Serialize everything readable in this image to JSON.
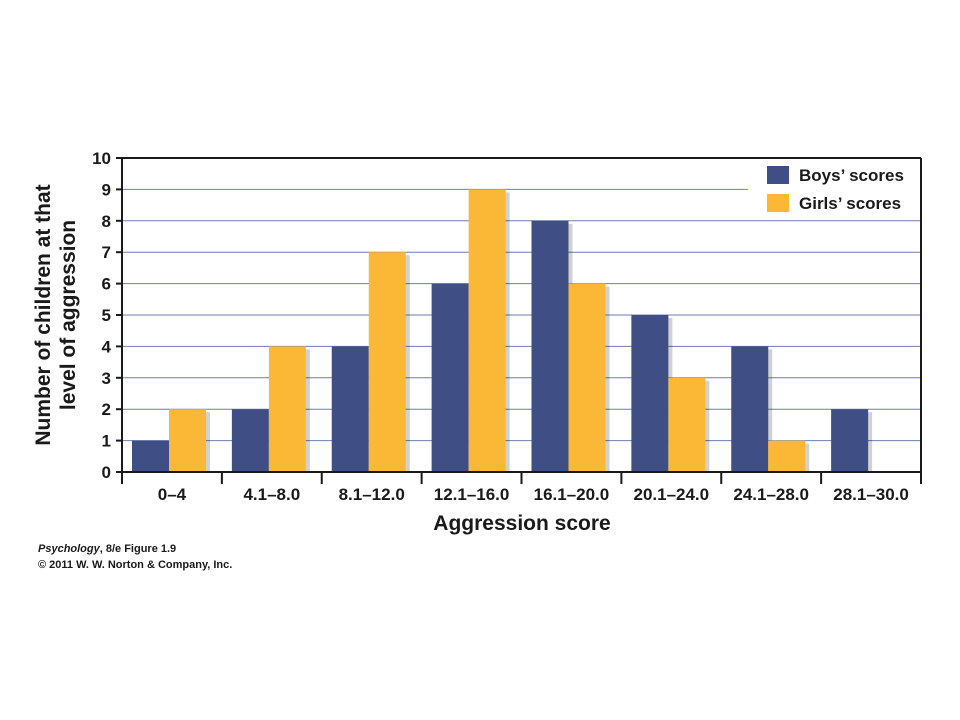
{
  "chart_data": {
    "type": "bar",
    "categories": [
      "0–4",
      "4.1–8.0",
      "8.1–12.0",
      "12.1–16.0",
      "16.1–20.0",
      "20.1–24.0",
      "24.1–28.0",
      "28.1–30.0"
    ],
    "series": [
      {
        "name": "Boys’ scores",
        "values": [
          1,
          2,
          4,
          6,
          8,
          5,
          4,
          2
        ],
        "color": "#3f4f85"
      },
      {
        "name": "Girls’ scores",
        "values": [
          2,
          4,
          7,
          9,
          6,
          3,
          1,
          0
        ],
        "color": "#fbb836"
      }
    ],
    "xlabel": "Aggression score",
    "ylabel_lines": [
      "Number of children at that",
      "level of aggression"
    ],
    "ylim": [
      0,
      10
    ],
    "yticks": [
      0,
      1,
      2,
      3,
      4,
      5,
      6,
      7,
      8,
      9,
      10
    ],
    "grid": true,
    "grid_color": "#6e7fb0",
    "legend_position": "top-right"
  },
  "credit": {
    "book_title": "Psychology",
    "book_rest": ", 8/e  Figure 1.9",
    "copyright": "© 2011 W. W. Norton & Company, Inc."
  }
}
